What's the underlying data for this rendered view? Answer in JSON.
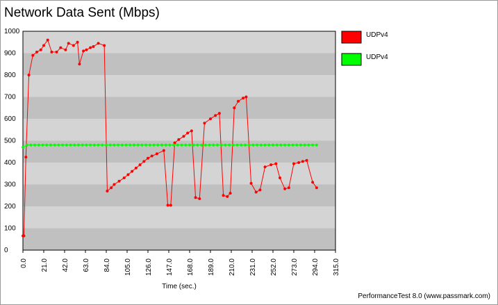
{
  "chart_data": {
    "type": "line",
    "title": "Network Data Sent (Mbps)",
    "x_label": "Time (sec.)",
    "footer": "PerformanceTest 8.0 (www.passmark.com)",
    "xlim": [
      0,
      315
    ],
    "ylim": [
      0,
      1000
    ],
    "xticks": [
      {
        "value": 0,
        "label": "0.0"
      },
      {
        "value": 21,
        "label": "21.0"
      },
      {
        "value": 42,
        "label": "42.0"
      },
      {
        "value": 63,
        "label": "63.0"
      },
      {
        "value": 84,
        "label": "84.0"
      },
      {
        "value": 105,
        "label": "105.0"
      },
      {
        "value": 126,
        "label": "126.0"
      },
      {
        "value": 147,
        "label": "147.0"
      },
      {
        "value": 168,
        "label": "168.0"
      },
      {
        "value": 189,
        "label": "189.0"
      },
      {
        "value": 210,
        "label": "210.0"
      },
      {
        "value": 231,
        "label": "231.0"
      },
      {
        "value": 252,
        "label": "252.0"
      },
      {
        "value": 273,
        "label": "273.0"
      },
      {
        "value": 294,
        "label": "294.0"
      },
      {
        "value": 315,
        "label": "315.0"
      }
    ],
    "yticks": [
      0,
      100,
      200,
      300,
      400,
      500,
      600,
      700,
      800,
      900,
      1000
    ],
    "grid": true,
    "legend": "right",
    "series": [
      {
        "name": "UDPv4",
        "color": "#ff0000",
        "x": [
          0,
          1,
          3,
          6,
          10,
          14,
          18,
          21,
          25,
          29,
          34,
          38,
          43,
          46,
          51,
          55,
          57,
          61,
          64,
          68,
          71,
          76,
          82,
          85,
          89,
          92,
          97,
          102,
          106,
          110,
          114,
          118,
          122,
          126,
          130,
          135,
          142,
          146,
          149,
          153,
          157,
          162,
          166,
          170,
          174,
          178,
          183,
          189,
          194,
          198,
          202,
          206,
          209,
          213,
          217,
          222,
          225,
          230,
          235,
          239,
          244,
          250,
          255,
          259,
          264,
          268,
          273,
          278,
          282,
          286,
          292,
          296
        ],
        "values": [
          65,
          65,
          425,
          800,
          890,
          905,
          915,
          935,
          960,
          905,
          905,
          925,
          915,
          945,
          935,
          950,
          850,
          910,
          915,
          925,
          930,
          945,
          935,
          270,
          285,
          300,
          315,
          330,
          345,
          360,
          375,
          390,
          405,
          420,
          430,
          440,
          455,
          205,
          205,
          490,
          505,
          520,
          535,
          545,
          240,
          235,
          580,
          600,
          615,
          625,
          250,
          245,
          260,
          650,
          680,
          695,
          700,
          305,
          265,
          275,
          380,
          390,
          395,
          330,
          280,
          285,
          395,
          400,
          405,
          410,
          310,
          285
        ]
      },
      {
        "name": "UDPv4",
        "color": "#00ff00",
        "x": [
          0,
          4,
          8,
          12,
          16,
          20,
          24,
          28,
          32,
          36,
          40,
          44,
          48,
          52,
          56,
          60,
          64,
          68,
          72,
          76,
          80,
          84,
          88,
          92,
          96,
          100,
          104,
          108,
          112,
          116,
          120,
          124,
          128,
          132,
          136,
          140,
          144,
          148,
          152,
          156,
          160,
          164,
          168,
          172,
          176,
          180,
          184,
          188,
          192,
          196,
          200,
          204,
          208,
          212,
          216,
          220,
          224,
          228,
          232,
          236,
          240,
          244,
          248,
          252,
          256,
          260,
          264,
          268,
          272,
          276,
          280,
          284,
          288,
          292,
          296
        ],
        "values": [
          470,
          480,
          480,
          480,
          480,
          480,
          480,
          480,
          480,
          480,
          480,
          480,
          480,
          480,
          480,
          480,
          480,
          480,
          480,
          480,
          480,
          480,
          480,
          480,
          480,
          480,
          480,
          480,
          480,
          480,
          480,
          480,
          480,
          480,
          480,
          480,
          480,
          480,
          480,
          480,
          480,
          480,
          480,
          480,
          480,
          480,
          480,
          480,
          480,
          480,
          480,
          480,
          480,
          480,
          480,
          480,
          480,
          480,
          480,
          480,
          480,
          480,
          480,
          480,
          480,
          480,
          480,
          480,
          480,
          480,
          480,
          480,
          480,
          480,
          480
        ]
      }
    ]
  }
}
